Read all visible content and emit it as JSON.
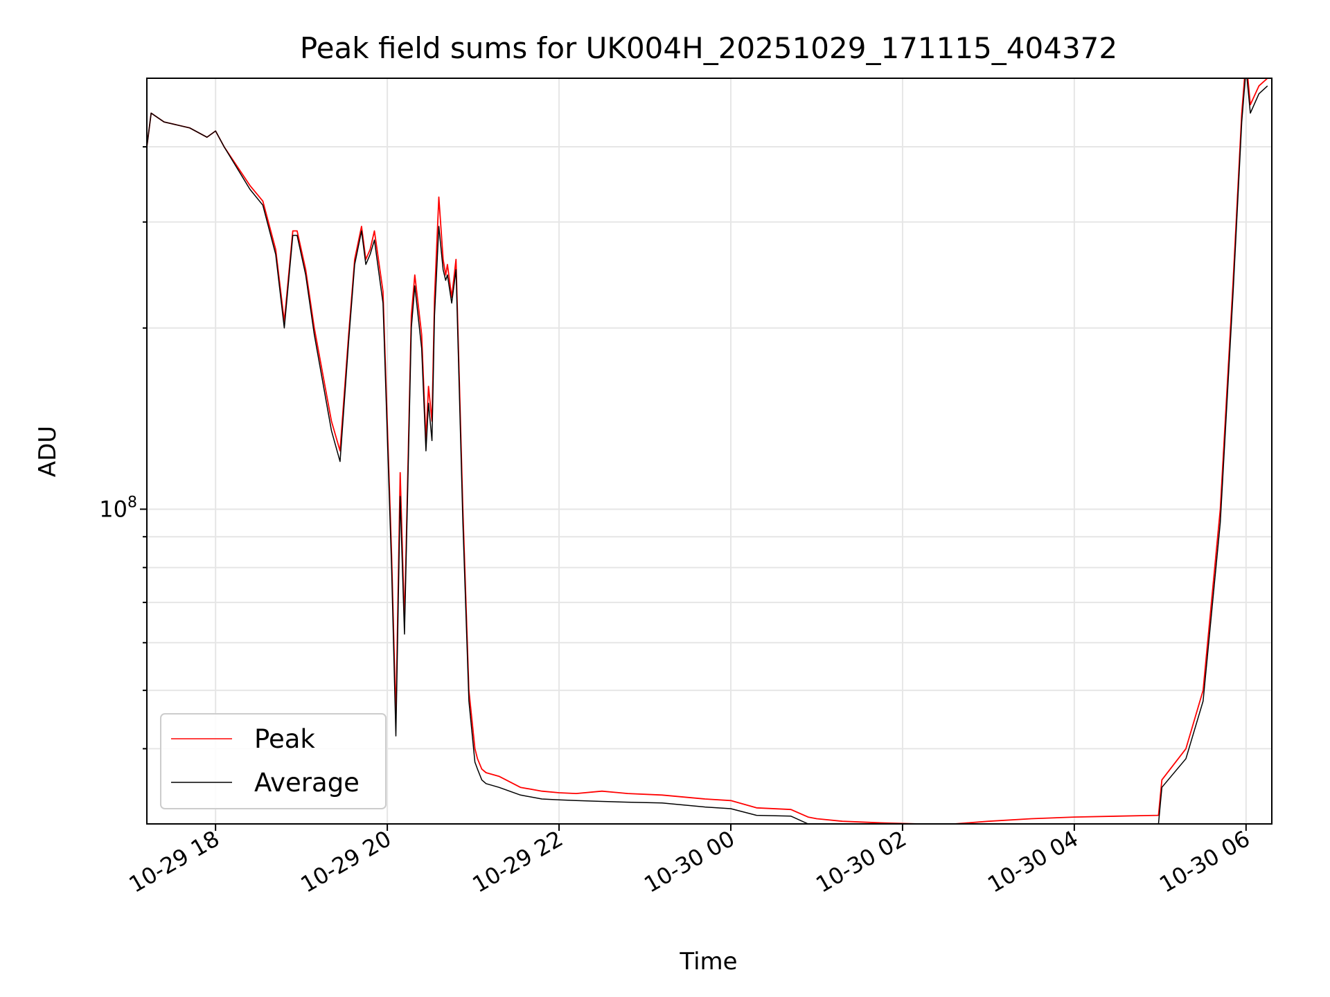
{
  "chart_data": {
    "type": "line",
    "title": "Peak field sums for UK004H_20251029_171115_404372",
    "xlabel": "Time",
    "ylabel": "ADU",
    "y_scale": "log",
    "ylim": [
      30000000,
      520000000
    ],
    "xlim_hours": [
      -6.8,
      6.3
    ],
    "grid": true,
    "legend_position": "lower-left",
    "x_ticks": [
      {
        "value": -6,
        "label": "10-29 18"
      },
      {
        "value": -4,
        "label": "10-29 20"
      },
      {
        "value": -2,
        "label": "10-29 22"
      },
      {
        "value": 0,
        "label": "10-30 00"
      },
      {
        "value": 2,
        "label": "10-30 02"
      },
      {
        "value": 4,
        "label": "10-30 04"
      },
      {
        "value": 6,
        "label": "10-30 06"
      }
    ],
    "y_major_ticks": [
      {
        "value": 100000000,
        "base": "10",
        "exponent": "8"
      }
    ],
    "y_minor_ticks": [
      40000000,
      50000000,
      60000000,
      70000000,
      80000000,
      90000000,
      200000000,
      300000000,
      400000000
    ],
    "x_hours_relative_to_midnight": [
      -6.8,
      -6.75,
      -6.6,
      -6.3,
      -6.1,
      -6.0,
      -5.9,
      -5.6,
      -5.45,
      -5.3,
      -5.2,
      -5.1,
      -5.05,
      -4.95,
      -4.85,
      -4.65,
      -4.55,
      -4.45,
      -4.38,
      -4.3,
      -4.25,
      -4.2,
      -4.15,
      -4.05,
      -3.95,
      -3.9,
      -3.85,
      -3.8,
      -3.72,
      -3.68,
      -3.6,
      -3.55,
      -3.52,
      -3.48,
      -3.45,
      -3.4,
      -3.35,
      -3.32,
      -3.3,
      -3.25,
      -3.2,
      -3.12,
      -3.05,
      -2.98,
      -2.95,
      -2.9,
      -2.85,
      -2.7,
      -2.45,
      -2.2,
      -2.0,
      -1.8,
      -1.5,
      -1.2,
      -0.8,
      -0.3,
      0.0,
      0.3,
      0.7,
      0.9,
      1.0,
      1.3,
      1.8,
      2.2,
      2.6,
      3.0,
      3.5,
      4.0,
      4.5,
      4.98,
      5.02,
      5.3,
      5.5,
      5.7,
      5.85,
      5.95,
      6.0,
      6.05,
      6.15,
      6.25
    ],
    "series": [
      {
        "name": "Peak",
        "color": "#ff0000",
        "values": [
          400000000,
          455000000,
          440000000,
          430000000,
          415000000,
          425000000,
          400000000,
          345000000,
          325000000,
          270000000,
          205000000,
          290000000,
          290000000,
          250000000,
          200000000,
          140000000,
          125000000,
          195000000,
          260000000,
          295000000,
          260000000,
          270000000,
          290000000,
          230000000,
          84000000,
          45000000,
          115000000,
          65000000,
          210000000,
          245000000,
          195000000,
          130000000,
          160000000,
          140000000,
          225000000,
          330000000,
          260000000,
          245000000,
          255000000,
          225000000,
          260000000,
          100000000,
          50000000,
          40000000,
          38500000,
          37000000,
          36500000,
          36000000,
          34500000,
          34000000,
          33800000,
          33700000,
          34000000,
          33700000,
          33500000,
          33000000,
          32800000,
          31900000,
          31700000,
          30800000,
          30600000,
          30300000,
          30100000,
          30000000,
          30000000,
          30300000,
          30600000,
          30800000,
          30900000,
          31000000,
          35500000,
          40000000,
          50000000,
          100000000,
          240000000,
          455000000,
          560000000,
          470000000,
          505000000,
          520000000
        ]
      },
      {
        "name": "Average",
        "color": "#000000",
        "values": [
          400000000,
          455000000,
          440000000,
          430000000,
          415000000,
          425000000,
          400000000,
          340000000,
          320000000,
          265000000,
          200000000,
          285000000,
          285000000,
          245000000,
          195000000,
          135000000,
          120000000,
          190000000,
          255000000,
          290000000,
          255000000,
          265000000,
          280000000,
          220000000,
          80000000,
          42000000,
          105000000,
          62000000,
          200000000,
          235000000,
          185000000,
          125000000,
          150000000,
          130000000,
          210000000,
          295000000,
          250000000,
          240000000,
          245000000,
          220000000,
          250000000,
          95000000,
          48000000,
          38000000,
          37000000,
          35500000,
          35000000,
          34500000,
          33500000,
          33000000,
          32900000,
          32800000,
          32700000,
          32600000,
          32500000,
          32000000,
          31800000,
          31000000,
          30900000,
          30000000,
          29800000,
          29500000,
          29300000,
          29200000,
          29200000,
          29400000,
          29600000,
          29700000,
          29800000,
          30000000,
          34500000,
          38500000,
          48000000,
          95000000,
          230000000,
          440000000,
          540000000,
          455000000,
          490000000,
          505000000
        ]
      }
    ]
  }
}
